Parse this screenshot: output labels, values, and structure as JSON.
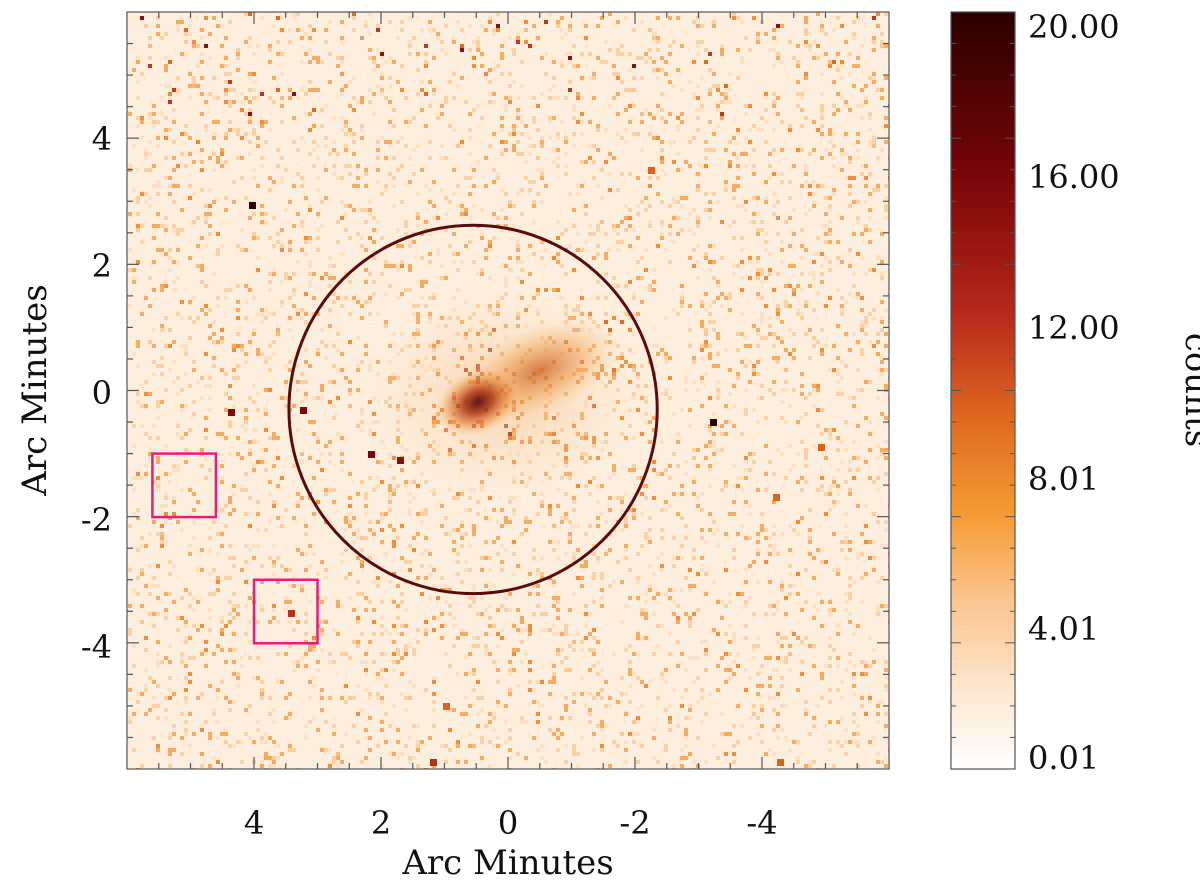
{
  "image": {
    "xlabel": "Arc Minutes",
    "ylabel": "Arc Minutes",
    "x_ticks": [
      {
        "value": 4,
        "label": "4"
      },
      {
        "value": 2,
        "label": "2"
      },
      {
        "value": 0,
        "label": "0"
      },
      {
        "value": -2,
        "label": "-2"
      },
      {
        "value": -4,
        "label": "-4"
      }
    ],
    "y_ticks": [
      {
        "value": 4,
        "label": "4"
      },
      {
        "value": 2,
        "label": "2"
      },
      {
        "value": 0,
        "label": "0"
      },
      {
        "value": -2,
        "label": "-2"
      },
      {
        "value": -4,
        "label": "-4"
      }
    ],
    "xlim": [
      6.0,
      -6.0
    ],
    "ylim": [
      -6.0,
      6.0
    ],
    "x_inverted": true,
    "extraction_region": {
      "shape": "circle",
      "center_x": 0.55,
      "center_y": -0.3,
      "radius": 2.9,
      "color": "#5a0c0c"
    },
    "excluded_regions": [
      {
        "shape": "square",
        "x_min": 4.6,
        "x_max": 5.6,
        "y_min": -2.0,
        "y_max": -1.0,
        "color": "#e0207a"
      },
      {
        "shape": "square",
        "x_min": 3.0,
        "x_max": 4.0,
        "y_min": -4.0,
        "y_max": -3.0,
        "color": "#e0207a"
      }
    ],
    "colorbar": {
      "label": "counts",
      "ticks": [
        "20.00",
        "16.00",
        "12.00",
        "8.01",
        "4.01",
        "0.01"
      ],
      "min": 0.01,
      "max": 20.0,
      "colors": [
        "#ffffff",
        "#fde8d2",
        "#fbc690",
        "#f59a32",
        "#e06a20",
        "#b8281c",
        "#7a0508",
        "#2a0000"
      ]
    }
  }
}
